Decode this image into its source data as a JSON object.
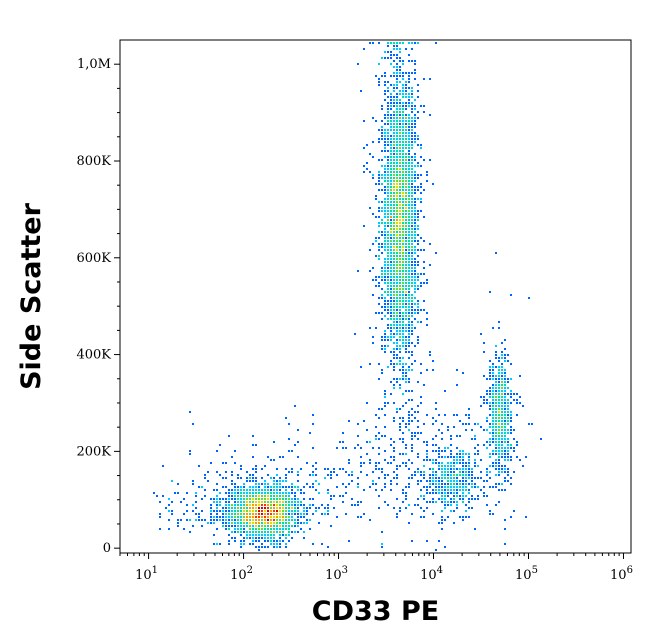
{
  "chart_data": {
    "type": "scatter",
    "subtype": "flow-cytometry-density-dot-plot",
    "xlabel": "CD33 PE",
    "ylabel": "Side Scatter",
    "x_scale": "log",
    "xlim": [
      5,
      1200000
    ],
    "ylim": [
      -10000,
      1050000
    ],
    "x_ticks": [
      {
        "value": 10,
        "base": "10",
        "exp": "1"
      },
      {
        "value": 100,
        "base": "10",
        "exp": "2"
      },
      {
        "value": 1000,
        "base": "10",
        "exp": "3"
      },
      {
        "value": 10000,
        "base": "10",
        "exp": "4"
      },
      {
        "value": 100000,
        "base": "10",
        "exp": "5"
      },
      {
        "value": 1000000,
        "base": "10",
        "exp": "6"
      }
    ],
    "y_ticks": [
      {
        "value": 0,
        "label": "0"
      },
      {
        "value": 200000,
        "label": "200K"
      },
      {
        "value": 400000,
        "label": "400K"
      },
      {
        "value": 600000,
        "label": "600K"
      },
      {
        "value": 800000,
        "label": "800K"
      },
      {
        "value": 1000000,
        "label": "1,0M"
      }
    ],
    "grid": false,
    "legend": "none",
    "colormap": [
      "#0000cc",
      "#0066ff",
      "#00ccff",
      "#00e0a0",
      "#66dd33",
      "#dddd00",
      "#ff9900",
      "#ff3300",
      "#dd0000"
    ],
    "populations": [
      {
        "x_center": 160,
        "y_center": 75000,
        "x_log_sd": 0.17,
        "y_sd": 24000,
        "count": 2600
      },
      {
        "x_center": 4300,
        "y_center": 680000,
        "x_log_sd": 0.09,
        "y_sd": 150000,
        "count": 3800
      },
      {
        "x_center": 48000,
        "y_center": 280000,
        "x_log_sd": 0.06,
        "y_sd": 60000,
        "count": 700
      },
      {
        "x_center": 15000,
        "y_center": 140000,
        "x_log_sd": 0.15,
        "y_sd": 35000,
        "count": 450
      }
    ]
  }
}
